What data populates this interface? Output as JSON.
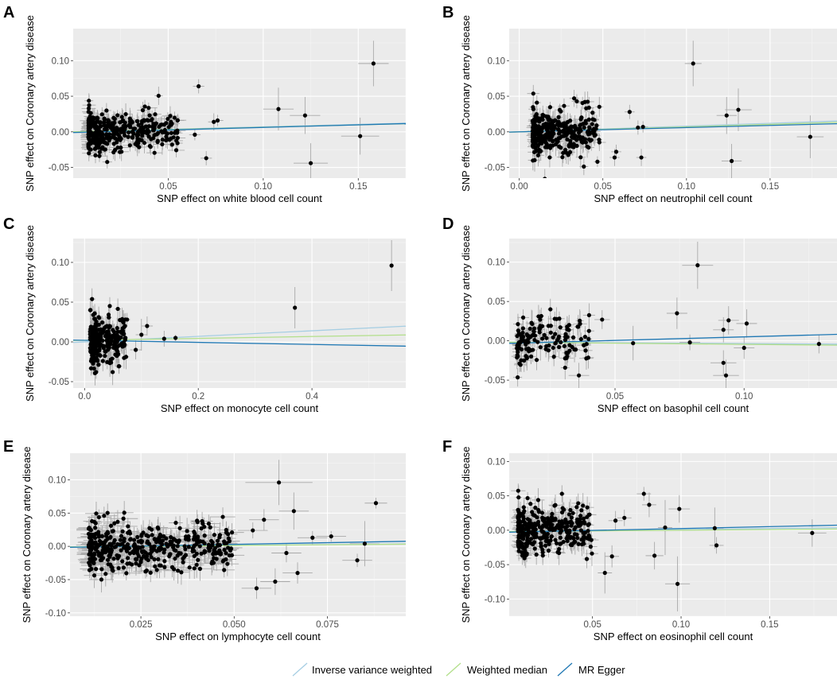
{
  "colors": {
    "panel_bg": "#ebebeb",
    "grid_major": "#ffffff",
    "grid_minor": "#f5f5f5",
    "point": "#000000",
    "errorbar": "#a9a9a9",
    "ivw": "#a6cee3",
    "wmedian": "#b2df8a",
    "egger": "#1f78b4"
  },
  "legend": {
    "items": [
      {
        "label": "Inverse variance weighted",
        "color": "#a6cee3"
      },
      {
        "label": "Weighted median",
        "color": "#b2df8a"
      },
      {
        "label": "MR Egger",
        "color": "#1f78b4"
      }
    ]
  },
  "chart_data": [
    {
      "panel": "A",
      "type": "scatter",
      "xlabel": "SNP effect on white blood cell count",
      "ylabel": "SNP effect on Coronary artery disease",
      "xlim": [
        0.0,
        0.175
      ],
      "ylim": [
        -0.065,
        0.145
      ],
      "xticks": [
        0.05,
        0.1,
        0.15
      ],
      "xtick_labels": [
        "0.05",
        "0.10",
        "0.15"
      ],
      "yticks": [
        -0.05,
        0.0,
        0.05,
        0.1
      ],
      "ytick_labels": [
        "-0.05",
        "0.00",
        "0.05",
        "0.10"
      ],
      "cluster": {
        "n": 360,
        "x_range": [
          0.008,
          0.055
        ],
        "y_sd": 0.014,
        "seed": 11
      },
      "points": [
        {
          "x": 0.158,
          "y": 0.096,
          "xe": 0.008,
          "ye": 0.032
        },
        {
          "x": 0.108,
          "y": 0.032,
          "xe": 0.008,
          "ye": 0.03
        },
        {
          "x": 0.122,
          "y": 0.023,
          "xe": 0.008,
          "ye": 0.026
        },
        {
          "x": 0.125,
          "y": -0.044,
          "xe": 0.009,
          "ye": 0.028
        },
        {
          "x": 0.151,
          "y": -0.006,
          "xe": 0.01,
          "ye": 0.026
        },
        {
          "x": 0.066,
          "y": 0.064,
          "xe": 0.003,
          "ye": 0.01
        },
        {
          "x": 0.07,
          "y": -0.037,
          "xe": 0.003,
          "ye": 0.01
        },
        {
          "x": 0.074,
          "y": 0.014,
          "xe": 0.003,
          "ye": 0.012
        },
        {
          "x": 0.076,
          "y": 0.016,
          "xe": 0.003,
          "ye": 0.008
        },
        {
          "x": 0.064,
          "y": -0.004,
          "xe": 0.003,
          "ye": 0.008
        }
      ],
      "lines": [
        {
          "name": "Inverse variance weighted",
          "slope": 0.07,
          "intercept": 0.0
        },
        {
          "name": "Weighted median",
          "slope": 0.065,
          "intercept": 0.0
        },
        {
          "name": "MR Egger",
          "slope": 0.072,
          "intercept": -0.001
        }
      ]
    },
    {
      "panel": "B",
      "type": "scatter",
      "xlabel": "SNP effect on neutrophil cell count",
      "ylabel": "SNP effect on Coronary artery disease",
      "xlim": [
        -0.006,
        0.19
      ],
      "ylim": [
        -0.065,
        0.145
      ],
      "xticks": [
        0.0,
        0.05,
        0.1,
        0.15
      ],
      "xtick_labels": [
        "0.00",
        "0.05",
        "0.10",
        "0.15"
      ],
      "yticks": [
        -0.05,
        0.0,
        0.05,
        0.1
      ],
      "ytick_labels": [
        "-0.05",
        "0.00",
        "0.05",
        "0.10"
      ],
      "cluster": {
        "n": 320,
        "x_range": [
          0.008,
          0.048
        ],
        "y_sd": 0.015,
        "seed": 23
      },
      "points": [
        {
          "x": 0.104,
          "y": 0.096,
          "xe": 0.005,
          "ye": 0.032
        },
        {
          "x": 0.124,
          "y": 0.023,
          "xe": 0.006,
          "ye": 0.026
        },
        {
          "x": 0.131,
          "y": 0.031,
          "xe": 0.008,
          "ye": 0.03
        },
        {
          "x": 0.127,
          "y": -0.041,
          "xe": 0.006,
          "ye": 0.024
        },
        {
          "x": 0.174,
          "y": -0.007,
          "xe": 0.008,
          "ye": 0.03
        },
        {
          "x": 0.057,
          "y": -0.036,
          "xe": 0.003,
          "ye": 0.012
        },
        {
          "x": 0.058,
          "y": -0.028,
          "xe": 0.003,
          "ye": 0.01
        },
        {
          "x": 0.066,
          "y": 0.028,
          "xe": 0.003,
          "ye": 0.01
        },
        {
          "x": 0.071,
          "y": 0.006,
          "xe": 0.003,
          "ye": 0.01
        },
        {
          "x": 0.073,
          "y": -0.036,
          "xe": 0.003,
          "ye": 0.012
        },
        {
          "x": 0.074,
          "y": 0.007,
          "xe": 0.003,
          "ye": 0.008
        }
      ],
      "lines": [
        {
          "name": "Inverse variance weighted",
          "slope": 0.08,
          "intercept": 0.0
        },
        {
          "name": "Weighted median",
          "slope": 0.07,
          "intercept": 0.0
        },
        {
          "name": "MR Egger",
          "slope": 0.06,
          "intercept": 0.0
        }
      ]
    },
    {
      "panel": "C",
      "type": "scatter",
      "xlabel": "SNP effect on monocyte cell count",
      "ylabel": "SNP effect on Coronary artery disease",
      "xlim": [
        -0.02,
        0.565
      ],
      "ylim": [
        -0.058,
        0.13
      ],
      "xticks": [
        0.0,
        0.2,
        0.4
      ],
      "xtick_labels": [
        "0.0",
        "0.2",
        "0.4"
      ],
      "yticks": [
        -0.05,
        0.0,
        0.05,
        0.1
      ],
      "ytick_labels": [
        "-0.05",
        "0.00",
        "0.05",
        "0.10"
      ],
      "cluster": {
        "n": 260,
        "x_range": [
          0.01,
          0.075
        ],
        "y_sd": 0.016,
        "seed": 37
      },
      "points": [
        {
          "x": 0.54,
          "y": 0.096,
          "xe": 0.0,
          "ye": 0.032
        },
        {
          "x": 0.37,
          "y": 0.043,
          "xe": 0.0,
          "ye": 0.026
        },
        {
          "x": 0.1,
          "y": 0.009,
          "xe": 0.01,
          "ye": 0.02
        },
        {
          "x": 0.11,
          "y": 0.02,
          "xe": 0.01,
          "ye": 0.012
        },
        {
          "x": 0.14,
          "y": 0.004,
          "xe": 0.01,
          "ye": 0.01
        },
        {
          "x": 0.16,
          "y": 0.005,
          "xe": 0.0,
          "ye": 0.004
        },
        {
          "x": 0.09,
          "y": -0.01,
          "xe": 0.01,
          "ye": 0.012
        }
      ],
      "lines": [
        {
          "name": "Inverse variance weighted",
          "slope": 0.035,
          "intercept": 0.0
        },
        {
          "name": "Weighted median",
          "slope": 0.012,
          "intercept": 0.002
        },
        {
          "name": "MR Egger",
          "slope": -0.013,
          "intercept": 0.002
        }
      ]
    },
    {
      "panel": "D",
      "type": "scatter",
      "xlabel": "SNP effect on basophil cell count",
      "ylabel": "SNP effect on Coronary artery disease",
      "xlim": [
        0.009,
        0.136
      ],
      "ylim": [
        -0.06,
        0.13
      ],
      "xticks": [
        0.05,
        0.1
      ],
      "xtick_labels": [
        "0.05",
        "0.10"
      ],
      "yticks": [
        -0.05,
        0.0,
        0.05,
        0.1
      ],
      "ytick_labels": [
        "-0.05",
        "0.00",
        "0.05",
        "0.10"
      ],
      "cluster": {
        "n": 140,
        "x_range": [
          0.012,
          0.04
        ],
        "y_sd": 0.016,
        "seed": 53
      },
      "points": [
        {
          "x": 0.082,
          "y": 0.096,
          "xe": 0.006,
          "ye": 0.03
        },
        {
          "x": 0.074,
          "y": 0.035,
          "xe": 0.004,
          "ye": 0.02
        },
        {
          "x": 0.094,
          "y": 0.026,
          "xe": 0.004,
          "ye": 0.018
        },
        {
          "x": 0.101,
          "y": 0.022,
          "xe": 0.004,
          "ye": 0.018
        },
        {
          "x": 0.092,
          "y": 0.014,
          "xe": 0.004,
          "ye": 0.016
        },
        {
          "x": 0.092,
          "y": -0.028,
          "xe": 0.005,
          "ye": 0.016
        },
        {
          "x": 0.093,
          "y": -0.044,
          "xe": 0.005,
          "ye": 0.02
        },
        {
          "x": 0.1,
          "y": -0.009,
          "xe": 0.004,
          "ye": 0.014
        },
        {
          "x": 0.129,
          "y": -0.004,
          "xe": 0.004,
          "ye": 0.012
        },
        {
          "x": 0.079,
          "y": -0.002,
          "xe": 0.004,
          "ye": 0.01
        },
        {
          "x": 0.057,
          "y": -0.003,
          "xe": 0.004,
          "ye": 0.022
        },
        {
          "x": 0.045,
          "y": 0.027,
          "xe": 0.003,
          "ye": 0.012
        },
        {
          "x": 0.036,
          "y": -0.044,
          "xe": 0.004,
          "ye": 0.016
        }
      ],
      "lines": [
        {
          "name": "Inverse variance weighted",
          "slope": -0.02,
          "intercept": -0.0015
        },
        {
          "name": "Weighted median",
          "slope": -0.03,
          "intercept": -0.0015
        },
        {
          "name": "MR Egger",
          "slope": 0.09,
          "intercept": -0.004
        }
      ]
    },
    {
      "panel": "E",
      "type": "scatter",
      "xlabel": "SNP effect on lymphocyte cell count",
      "ylabel": "SNP effect on Coronary artery disease",
      "xlim": [
        0.006,
        0.096
      ],
      "ylim": [
        -0.105,
        0.14
      ],
      "xticks": [
        0.025,
        0.05,
        0.075
      ],
      "xtick_labels": [
        "0.025",
        "0.050",
        "0.075"
      ],
      "yticks": [
        -0.1,
        -0.05,
        0.0,
        0.05,
        0.1
      ],
      "ytick_labels": [
        "-0.10",
        "-0.05",
        "0.00",
        "0.05",
        "0.10"
      ],
      "cluster": {
        "n": 420,
        "x_range": [
          0.011,
          0.05
        ],
        "y_sd": 0.018,
        "seed": 71
      },
      "points": [
        {
          "x": 0.062,
          "y": 0.096,
          "xe": 0.009,
          "ye": 0.034
        },
        {
          "x": 0.088,
          "y": 0.065,
          "xe": 0.003,
          "ye": 0.008
        },
        {
          "x": 0.066,
          "y": 0.053,
          "xe": 0.004,
          "ye": 0.028
        },
        {
          "x": 0.056,
          "y": -0.063,
          "xe": 0.004,
          "ye": 0.016
        },
        {
          "x": 0.061,
          "y": -0.053,
          "xe": 0.004,
          "ye": 0.02
        },
        {
          "x": 0.067,
          "y": -0.04,
          "xe": 0.004,
          "ye": 0.016
        },
        {
          "x": 0.083,
          "y": -0.021,
          "xe": 0.004,
          "ye": 0.01
        },
        {
          "x": 0.085,
          "y": 0.004,
          "xe": 0.004,
          "ye": 0.034
        },
        {
          "x": 0.071,
          "y": 0.013,
          "xe": 0.004,
          "ye": 0.01
        },
        {
          "x": 0.076,
          "y": 0.015,
          "xe": 0.004,
          "ye": 0.008
        },
        {
          "x": 0.064,
          "y": -0.01,
          "xe": 0.004,
          "ye": 0.014
        },
        {
          "x": 0.055,
          "y": 0.024,
          "xe": 0.004,
          "ye": 0.012
        },
        {
          "x": 0.058,
          "y": 0.04,
          "xe": 0.004,
          "ye": 0.016
        }
      ],
      "lines": [
        {
          "name": "Inverse variance weighted",
          "slope": 0.05,
          "intercept": -0.001
        },
        {
          "name": "Weighted median",
          "slope": 0.045,
          "intercept": -0.001
        },
        {
          "name": "MR Egger",
          "slope": 0.1,
          "intercept": -0.002
        }
      ]
    },
    {
      "panel": "F",
      "type": "scatter",
      "xlabel": "SNP effect on eosinophil cell count",
      "ylabel": "SNP effect on Coronary artery disease",
      "xlim": [
        0.003,
        0.188
      ],
      "ylim": [
        -0.125,
        0.112
      ],
      "xticks": [
        0.05,
        0.1,
        0.15
      ],
      "xtick_labels": [
        "0.05",
        "0.10",
        "0.15"
      ],
      "yticks": [
        -0.1,
        -0.05,
        0.0,
        0.05,
        0.1
      ],
      "ytick_labels": [
        "-0.10",
        "-0.05",
        "0.00",
        "0.05",
        "0.10"
      ],
      "cluster": {
        "n": 330,
        "x_range": [
          0.008,
          0.05
        ],
        "y_sd": 0.017,
        "seed": 89
      },
      "points": [
        {
          "x": 0.098,
          "y": -0.078,
          "xe": 0.007,
          "ye": 0.04
        },
        {
          "x": 0.099,
          "y": 0.031,
          "xe": 0.006,
          "ye": 0.02
        },
        {
          "x": 0.119,
          "y": 0.003,
          "xe": 0.005,
          "ye": 0.03
        },
        {
          "x": 0.12,
          "y": -0.022,
          "xe": 0.004,
          "ye": 0.012
        },
        {
          "x": 0.174,
          "y": -0.004,
          "xe": 0.008,
          "ye": 0.02
        },
        {
          "x": 0.079,
          "y": 0.053,
          "xe": 0.004,
          "ye": 0.01
        },
        {
          "x": 0.082,
          "y": 0.037,
          "xe": 0.004,
          "ye": 0.018
        },
        {
          "x": 0.085,
          "y": -0.037,
          "xe": 0.005,
          "ye": 0.02
        },
        {
          "x": 0.091,
          "y": 0.004,
          "xe": 0.004,
          "ye": 0.04
        },
        {
          "x": 0.057,
          "y": -0.062,
          "xe": 0.004,
          "ye": 0.03
        },
        {
          "x": 0.061,
          "y": -0.038,
          "xe": 0.004,
          "ye": 0.016
        },
        {
          "x": 0.063,
          "y": 0.014,
          "xe": 0.004,
          "ye": 0.014
        },
        {
          "x": 0.068,
          "y": 0.018,
          "xe": 0.004,
          "ye": 0.012
        }
      ],
      "lines": [
        {
          "name": "Inverse variance weighted",
          "slope": 0.03,
          "intercept": -0.002
        },
        {
          "name": "Weighted median",
          "slope": 0.02,
          "intercept": -0.002
        },
        {
          "name": "MR Egger",
          "slope": 0.055,
          "intercept": -0.003
        }
      ]
    }
  ]
}
